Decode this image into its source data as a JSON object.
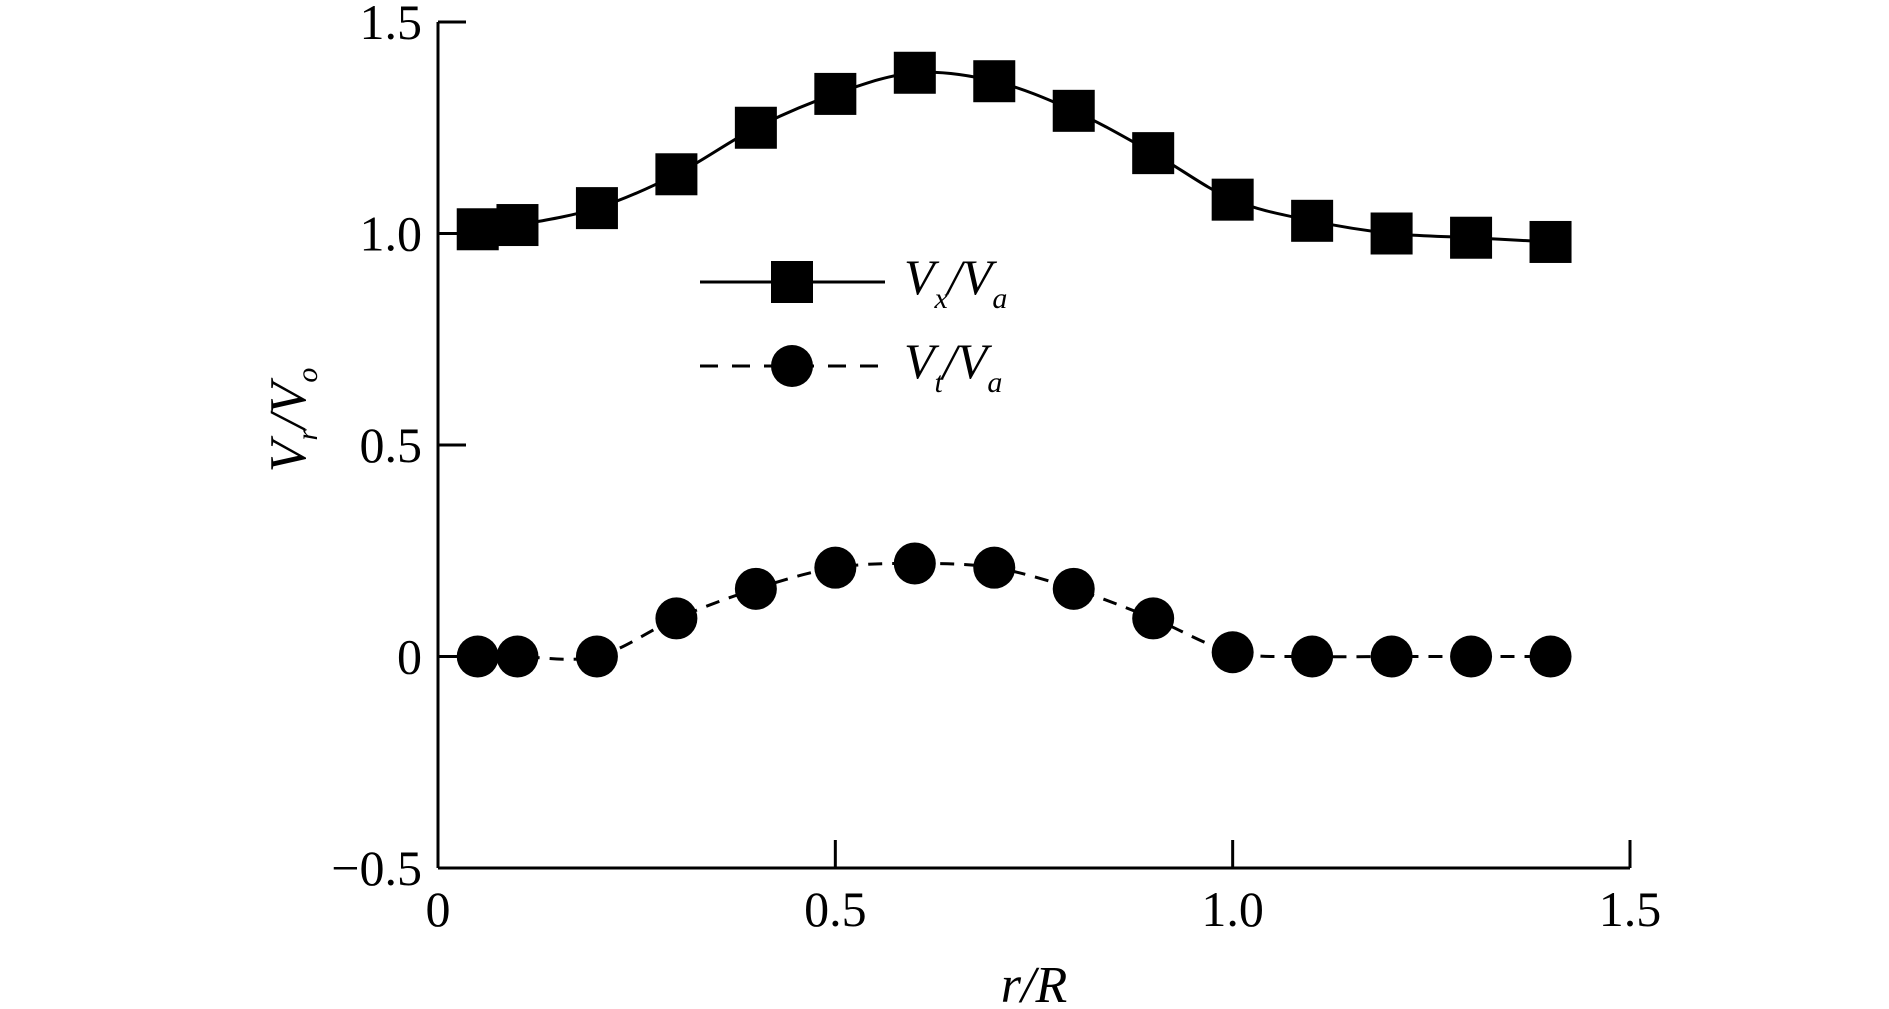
{
  "chart_data": {
    "type": "line",
    "xlabel": "r/R",
    "ylabel": "Vr/Vo",
    "ylabel_parts": {
      "main": "V",
      "sub": "r",
      "sep": "/V",
      "sub2": "o"
    },
    "xlim": [
      0,
      1.5
    ],
    "ylim": [
      -0.5,
      1.5
    ],
    "x_ticks": [
      0,
      0.5,
      1.0,
      1.5
    ],
    "x_tick_labels": [
      "0",
      "0.5",
      "1.0",
      "1.5"
    ],
    "y_ticks": [
      -0.5,
      0,
      0.5,
      1.0,
      1.5
    ],
    "y_tick_labels": [
      "−0.5",
      "0",
      "0.5",
      "1.0",
      "1.5"
    ],
    "grid": false,
    "legend_position": "center-left inside",
    "series": [
      {
        "name": "Vx/Va",
        "name_parts": {
          "main": "V",
          "sub": "x",
          "sep": "/V",
          "sub2": "a"
        },
        "line_style": "solid",
        "marker": "square",
        "color": "#000000",
        "x": [
          0.05,
          0.1,
          0.2,
          0.3,
          0.4,
          0.5,
          0.6,
          0.7,
          0.8,
          0.9,
          1.0,
          1.1,
          1.2,
          1.3,
          1.4
        ],
        "y": [
          1.01,
          1.02,
          1.06,
          1.14,
          1.25,
          1.33,
          1.38,
          1.36,
          1.29,
          1.19,
          1.08,
          1.03,
          1.0,
          0.99,
          0.98
        ]
      },
      {
        "name": "Vt/Va",
        "name_parts": {
          "main": "V",
          "sub": "t",
          "sep": "/V",
          "sub2": "a"
        },
        "line_style": "dashed",
        "marker": "circle",
        "color": "#000000",
        "x": [
          0.05,
          0.1,
          0.2,
          0.3,
          0.4,
          0.5,
          0.6,
          0.7,
          0.8,
          0.9,
          1.0,
          1.1,
          1.2,
          1.3,
          1.4
        ],
        "y": [
          0.0,
          0.0,
          0.0,
          0.09,
          0.16,
          0.21,
          0.22,
          0.21,
          0.16,
          0.09,
          0.01,
          0.0,
          0.0,
          0.0,
          0.0
        ]
      }
    ]
  }
}
